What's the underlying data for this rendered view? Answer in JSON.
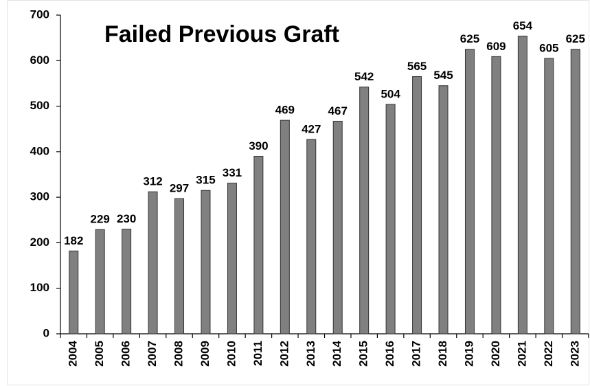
{
  "chart_data": {
    "type": "bar",
    "title": "Failed Previous Graft",
    "categories": [
      "2004",
      "2005",
      "2006",
      "2007",
      "2008",
      "2009",
      "2010",
      "2011",
      "2012",
      "2013",
      "2014",
      "2015",
      "2016",
      "2017",
      "2018",
      "2019",
      "2020",
      "2021",
      "2022",
      "2023"
    ],
    "values": [
      182,
      229,
      230,
      312,
      297,
      315,
      331,
      390,
      469,
      427,
      467,
      542,
      504,
      565,
      545,
      625,
      609,
      654,
      605,
      625
    ],
    "color": "#808080",
    "ylim": [
      0,
      700
    ],
    "yticks": [
      0,
      100,
      200,
      300,
      400,
      500,
      600,
      700
    ],
    "grid": false
  }
}
